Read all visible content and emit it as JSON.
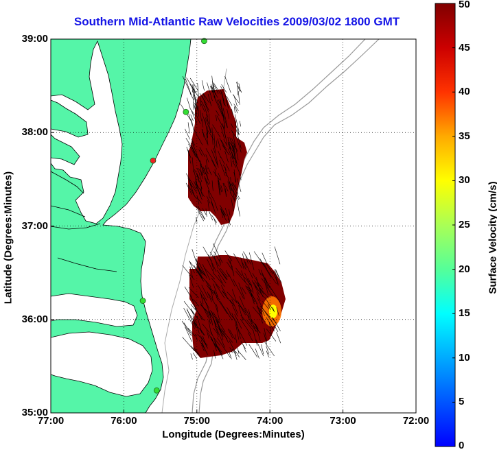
{
  "title": "Southern Mid-Atlantic Raw Velocities 2009/03/02 1800 GMT",
  "xlabel": "Longitude (Degrees:Minutes)",
  "ylabel": "Latitude (Degrees:Minutes)",
  "colorbar": {
    "label": "Surface Velocity (cm/s)",
    "ticks": [
      "50",
      "45",
      "40",
      "35",
      "30",
      "25",
      "20",
      "15",
      "10",
      "5",
      "0"
    ],
    "min": 0,
    "max": 50
  },
  "axes": {
    "x_ticks": [
      "77:00",
      "76:00",
      "75:00",
      "74:00",
      "73:00",
      "72:00"
    ],
    "y_ticks": [
      "39:00",
      "38:00",
      "37:00",
      "36:00",
      "35:00"
    ],
    "xlim_deg_west": [
      77,
      72
    ],
    "ylim_deg_north": [
      35,
      39
    ],
    "grid": "dotted"
  },
  "colors": {
    "land": "#55f5a8",
    "water": "#ffffff",
    "velocity_field": "#800000",
    "vector": "#000000",
    "bathymetry": "#aaaaaa",
    "station_green": "#33dd33",
    "station_red": "#ee2222",
    "title": "#1414e6"
  },
  "stations": [
    {
      "lon": 74.9,
      "lat": 38.98,
      "color": "green"
    },
    {
      "lon": 75.15,
      "lat": 38.22,
      "color": "green"
    },
    {
      "lon": 75.6,
      "lat": 37.7,
      "color": "red"
    },
    {
      "lon": 75.74,
      "lat": 36.2,
      "color": "green"
    },
    {
      "lon": 75.55,
      "lat": 35.24,
      "color": "green"
    }
  ]
}
